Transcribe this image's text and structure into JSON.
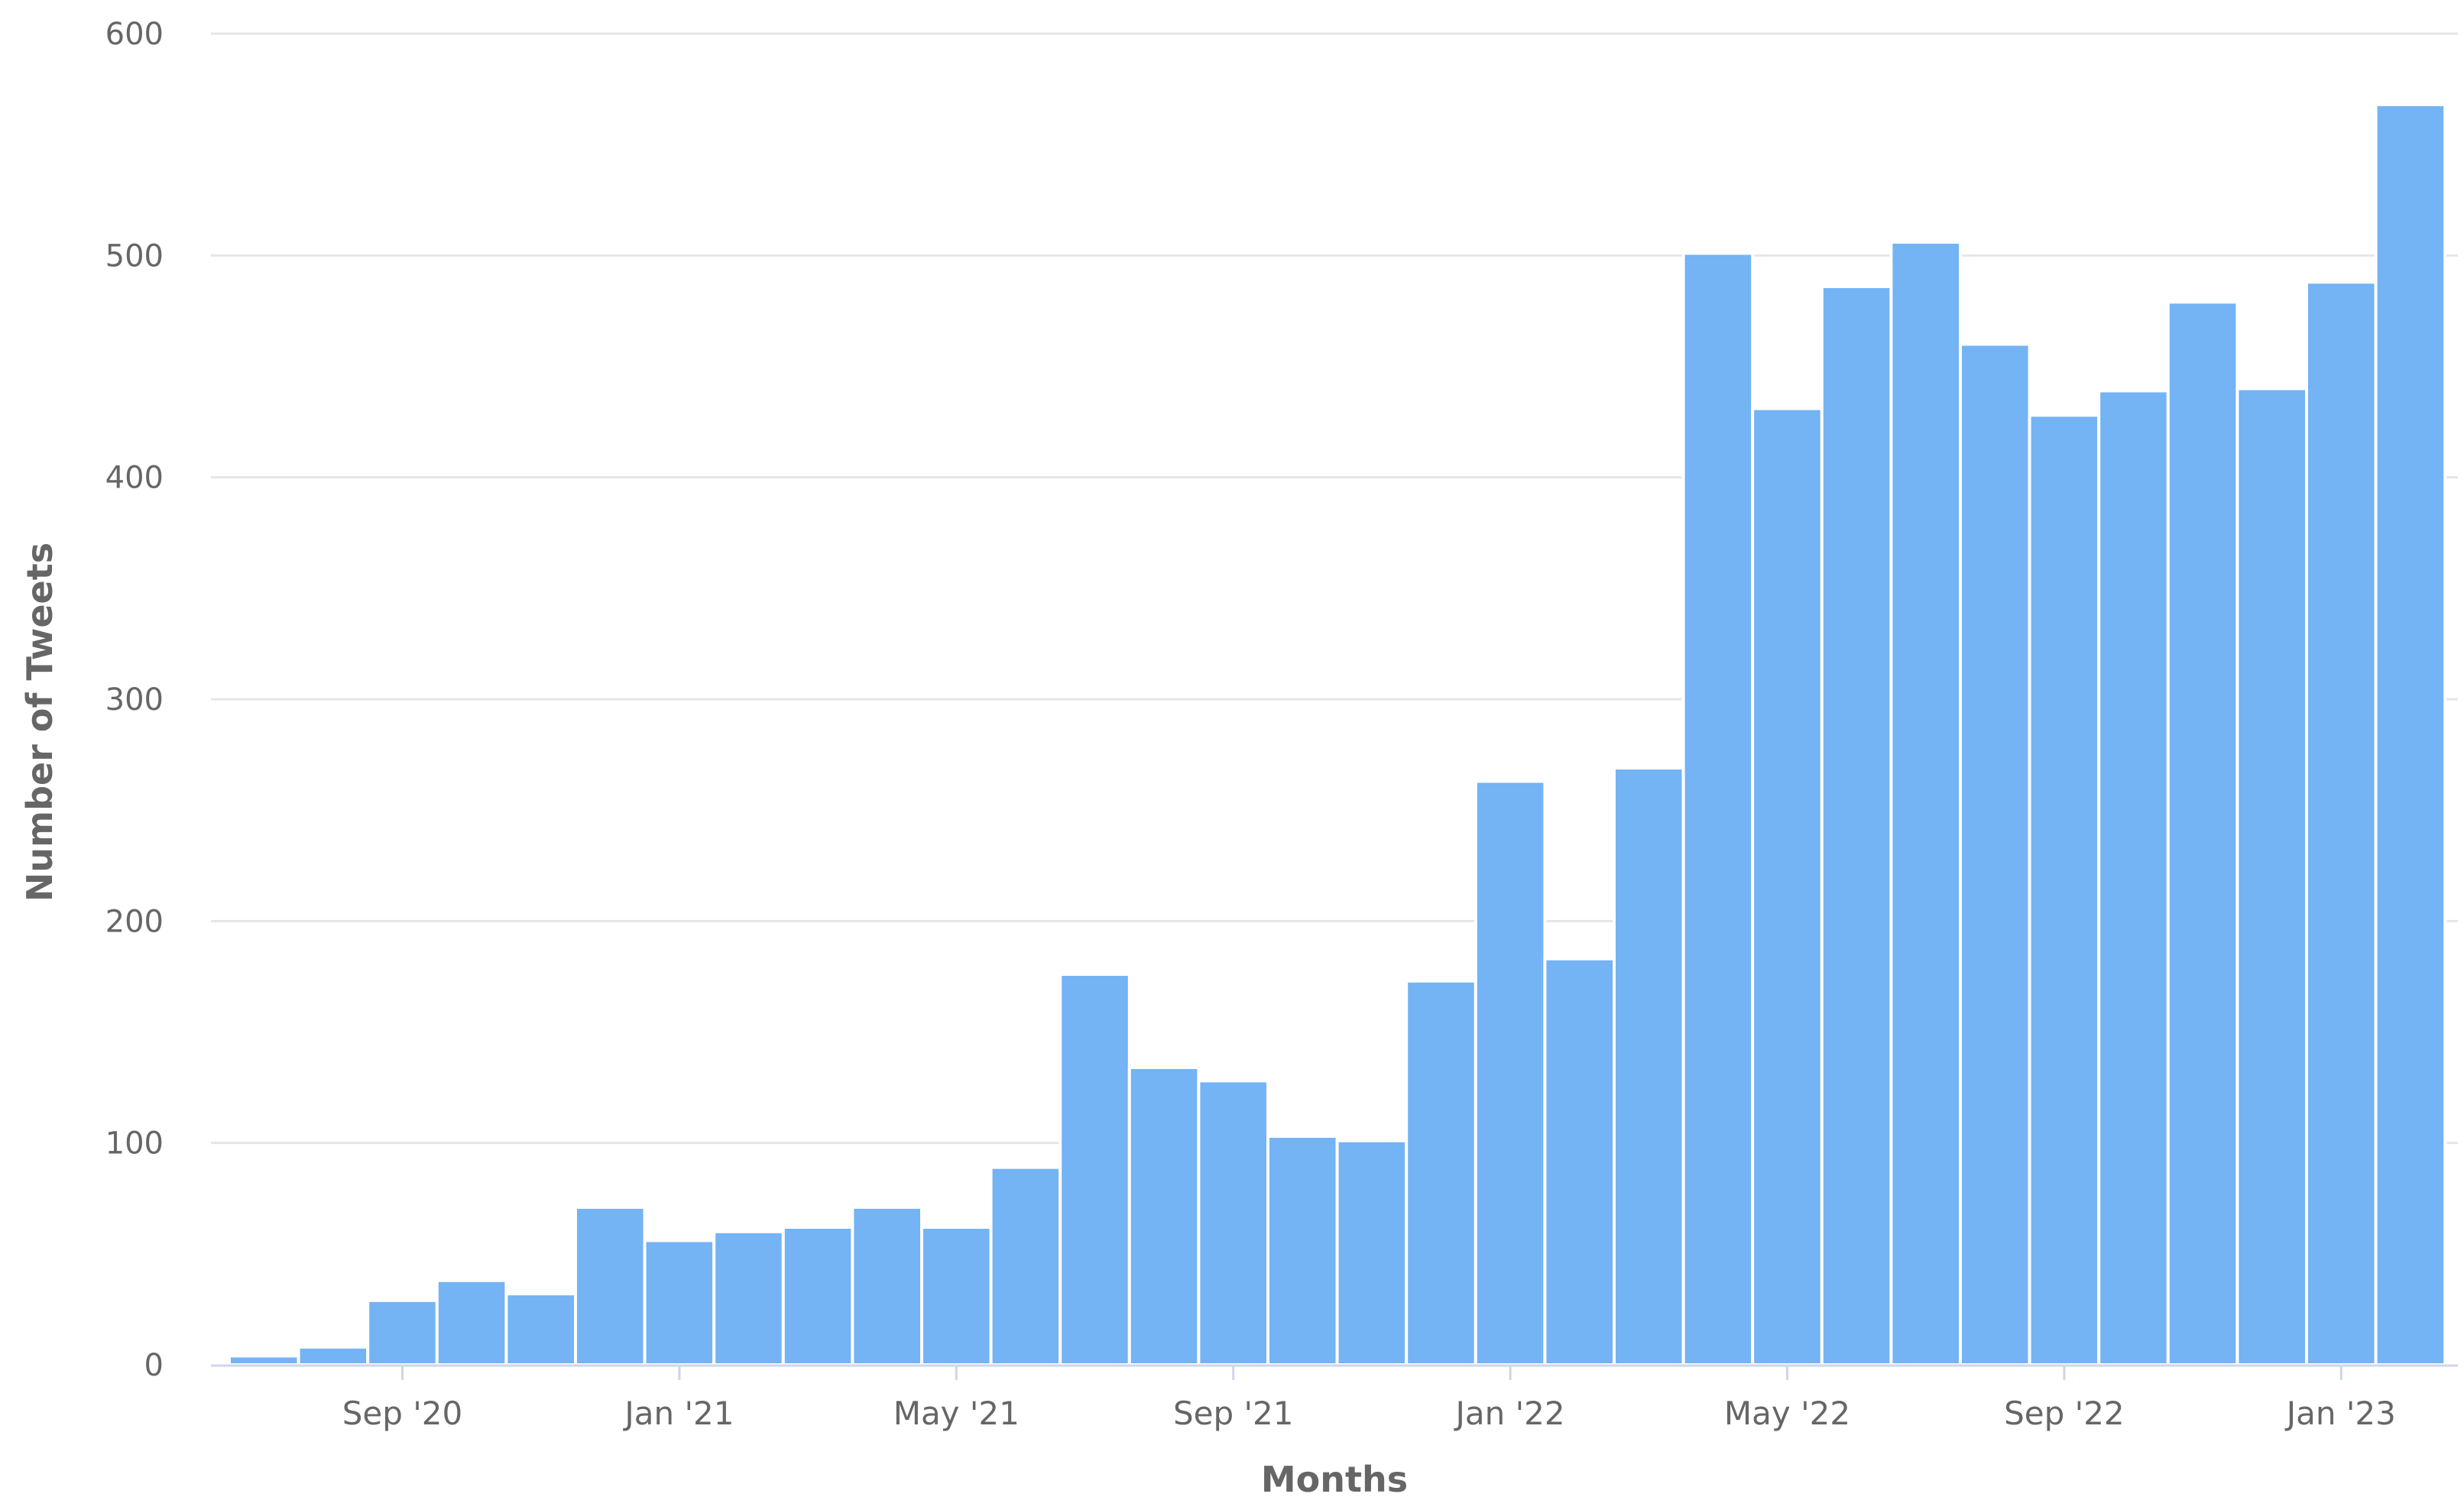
{
  "chart_data": {
    "type": "bar",
    "xlabel": "Months",
    "ylabel": "Number of Tweets",
    "ylim": [
      0,
      600
    ],
    "yticks": [
      0,
      100,
      200,
      300,
      400,
      500,
      600
    ],
    "grid": true,
    "legend": "none",
    "bar_color": "#74b3f4",
    "x_tick_labels": [
      "Sep '20",
      "Jan '21",
      "May '21",
      "Sep '21",
      "Jan '22",
      "May '22",
      "Sep '22",
      "Jan '23"
    ],
    "x_tick_months": [
      "2020-09",
      "2021-01",
      "2021-05",
      "2021-09",
      "2022-01",
      "2022-05",
      "2022-09",
      "2023-01"
    ],
    "categories": [
      "2020-07",
      "2020-08",
      "2020-09",
      "2020-10",
      "2020-11",
      "2020-12",
      "2021-01",
      "2021-02",
      "2021-03",
      "2021-04",
      "2021-05",
      "2021-06",
      "2021-07",
      "2021-08",
      "2021-09",
      "2021-10",
      "2021-11",
      "2021-12",
      "2022-01",
      "2022-02",
      "2022-03",
      "2022-04",
      "2022-05",
      "2022-06",
      "2022-07",
      "2022-08",
      "2022-09",
      "2022-10",
      "2022-11",
      "2022-12",
      "2023-01",
      "2023-02"
    ],
    "values": [
      4,
      8,
      29,
      38,
      32,
      71,
      56,
      60,
      62,
      71,
      62,
      89,
      176,
      134,
      128,
      103,
      101,
      173,
      263,
      183,
      269,
      501,
      431,
      486,
      506,
      460,
      428,
      439,
      479,
      440,
      488,
      568
    ]
  }
}
